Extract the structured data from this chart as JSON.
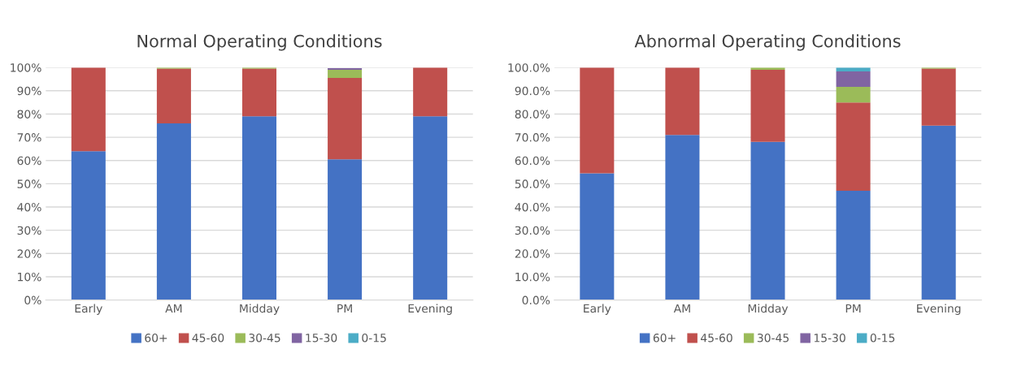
{
  "chart_data": [
    {
      "type": "bar",
      "stacked": true,
      "title": "Normal Operating Conditions",
      "categories": [
        "Early",
        "AM",
        "Midday",
        "PM",
        "Evening"
      ],
      "series": [
        {
          "name": "60+",
          "color": "#4472c4",
          "values": [
            64,
            76,
            79,
            60.5,
            79
          ]
        },
        {
          "name": "45-60",
          "color": "#c0504d",
          "values": [
            36,
            23.5,
            20.5,
            35,
            21
          ]
        },
        {
          "name": "30-45",
          "color": "#9bbb59",
          "values": [
            null,
            0.5,
            0.5,
            3.5,
            null
          ]
        },
        {
          "name": "15-30",
          "color": "#8064a2",
          "values": [
            null,
            null,
            null,
            0.7,
            null
          ]
        },
        {
          "name": "0-15",
          "color": "#4bacc6",
          "values": [
            null,
            null,
            null,
            null,
            null
          ]
        }
      ],
      "ylim": [
        0,
        100
      ],
      "yticks": [
        {
          "value": 0,
          "label": "0%"
        },
        {
          "value": 10,
          "label": "10%"
        },
        {
          "value": 20,
          "label": "20%"
        },
        {
          "value": 30,
          "label": "30%"
        },
        {
          "value": 40,
          "label": "40%"
        },
        {
          "value": 50,
          "label": "50%"
        },
        {
          "value": 60,
          "label": "60%"
        },
        {
          "value": 70,
          "label": "70%"
        },
        {
          "value": 80,
          "label": "80%"
        },
        {
          "value": 90,
          "label": "90%"
        },
        {
          "value": 100,
          "label": "100%"
        }
      ],
      "grid": "y",
      "legend": "bottom"
    },
    {
      "type": "bar",
      "stacked": true,
      "title": "Abnormal Operating Conditions",
      "categories": [
        "Early",
        "AM",
        "Midday",
        "PM",
        "Evening"
      ],
      "series": [
        {
          "name": "60+",
          "color": "#4472c4",
          "values": [
            54.5,
            71,
            68,
            47,
            75
          ]
        },
        {
          "name": "45-60",
          "color": "#c0504d",
          "values": [
            45.5,
            29,
            31,
            38,
            24.5
          ]
        },
        {
          "name": "30-45",
          "color": "#9bbb59",
          "values": [
            null,
            null,
            1,
            6.7,
            0.5
          ]
        },
        {
          "name": "15-30",
          "color": "#8064a2",
          "values": [
            null,
            null,
            null,
            6.6,
            null
          ]
        },
        {
          "name": "0-15",
          "color": "#4bacc6",
          "values": [
            null,
            null,
            null,
            1.7,
            null
          ]
        }
      ],
      "ylim": [
        0,
        100
      ],
      "yticks": [
        {
          "value": 0,
          "label": "0.0%"
        },
        {
          "value": 10,
          "label": "10.0%"
        },
        {
          "value": 20,
          "label": "20.0%"
        },
        {
          "value": 30,
          "label": "30.0%"
        },
        {
          "value": 40,
          "label": "40.0%"
        },
        {
          "value": 50,
          "label": "50.0%"
        },
        {
          "value": 60,
          "label": "60.0%"
        },
        {
          "value": 70,
          "label": "70.0%"
        },
        {
          "value": 80,
          "label": "80.0%"
        },
        {
          "value": 90,
          "label": "90.0%"
        },
        {
          "value": 100,
          "label": "100.0%"
        }
      ],
      "grid": "y",
      "legend": "bottom"
    }
  ]
}
